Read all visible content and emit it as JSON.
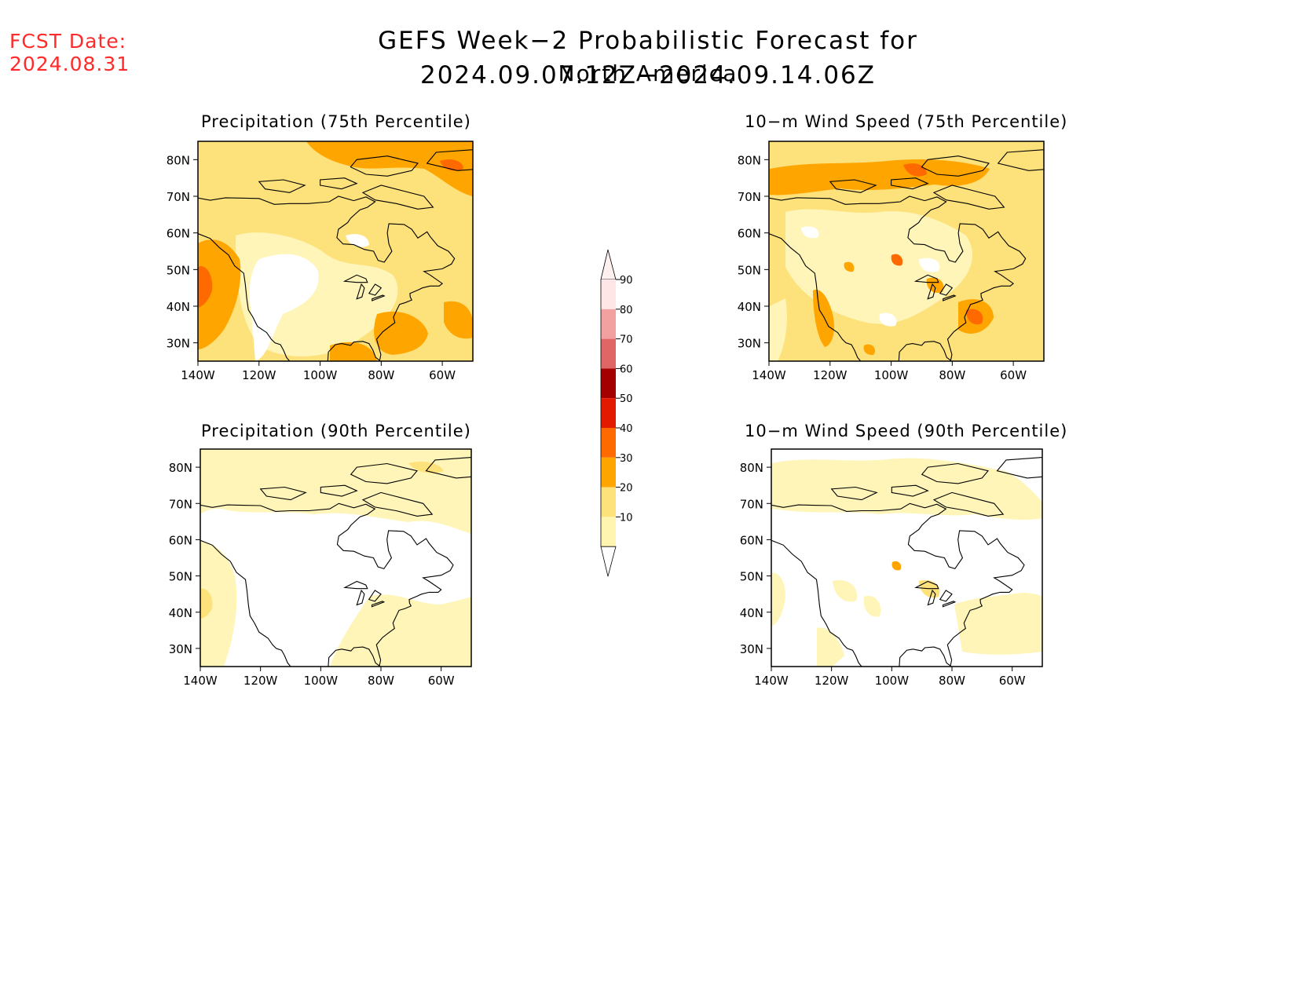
{
  "header": {
    "fcst_label": "FCST Date:",
    "fcst_date": "2024.08.31",
    "title": "GEFS Week−2 Probabilistic Forecast for 2024.09.07.12Z−2024.09.14.06Z",
    "subtitle": "North America"
  },
  "panels": [
    {
      "id": "precip75",
      "title": "Precipitation (75th Percentile)"
    },
    {
      "id": "wind75",
      "title": "10−m Wind Speed (75th Percentile)"
    },
    {
      "id": "precip90",
      "title": "Precipitation (90th Percentile)"
    },
    {
      "id": "wind90",
      "title": "10−m Wind Speed (90th Percentile)"
    }
  ],
  "axes": {
    "lat_labels": [
      "80N",
      "70N",
      "60N",
      "50N",
      "40N",
      "30N"
    ],
    "lat_values": [
      80,
      70,
      60,
      50,
      40,
      30
    ],
    "lon_labels": [
      "140W",
      "120W",
      "100W",
      "80W",
      "60W"
    ],
    "lon_values": [
      -140,
      -120,
      -100,
      -80,
      -60
    ],
    "lon_range": [
      -140,
      -50
    ],
    "lat_range": [
      25,
      85
    ]
  },
  "colorbar": {
    "levels": [
      "90",
      "80",
      "70",
      "60",
      "50",
      "40",
      "30",
      "20",
      "10"
    ],
    "colors": [
      "#ffe6e6",
      "#f3a0a0",
      "#e06666",
      "#a50000",
      "#e41a00",
      "#ff6a00",
      "#ffa500",
      "#fde17a",
      "#fff5b0"
    ]
  },
  "map_colors": {
    "c1": "#fff5b8",
    "c2": "#fde17a",
    "c3": "#ffa500",
    "c4": "#ff6a00",
    "c5": "#e41a00"
  }
}
